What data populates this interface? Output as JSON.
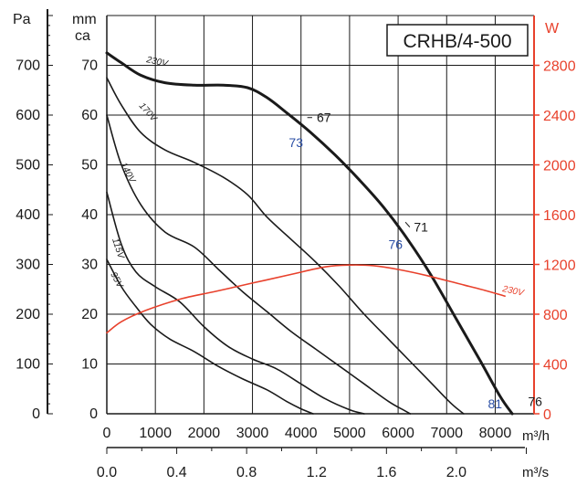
{
  "chart_data": {
    "type": "line",
    "title": "CRHB/4-500",
    "axes": {
      "x_flow_m3h": {
        "unit": "m³/h",
        "ticks": [
          0,
          1000,
          2000,
          3000,
          4000,
          5000,
          6000,
          7000,
          8000
        ],
        "range": [
          0,
          8800
        ]
      },
      "x_flow_m3s": {
        "unit": "m³/s",
        "ticks": [
          "0.0",
          "0.4",
          "0.8",
          "1.2",
          "1.6",
          "2.0"
        ],
        "values": [
          0,
          0.4,
          0.8,
          1.2,
          1.6,
          2.0
        ]
      },
      "y_pa": {
        "unit": "Pa",
        "ticks": [
          0,
          100,
          200,
          300,
          400,
          500,
          600,
          700
        ],
        "range": [
          0,
          800
        ]
      },
      "y_mmca": {
        "unit_line1": "mm",
        "unit_line2": "ca",
        "ticks": [
          0,
          10,
          20,
          30,
          40,
          50,
          60,
          70
        ],
        "range": [
          0,
          80
        ]
      },
      "y_w": {
        "unit": "W",
        "ticks": [
          0,
          400,
          800,
          1200,
          1600,
          2000,
          2400,
          2800
        ],
        "range": [
          0,
          3200
        ]
      }
    },
    "grid": true,
    "series": [
      {
        "name": "230V",
        "bold": true,
        "color": "#1a1a1a",
        "x": [
          0,
          300,
          700,
          1200,
          1800,
          2400,
          2900,
          3300,
          3700,
          4200,
          4700,
          5200,
          5700,
          6200,
          6700,
          7200,
          7700,
          8100,
          8350
        ],
        "y": [
          725,
          705,
          680,
          665,
          660,
          660,
          655,
          635,
          605,
          565,
          520,
          470,
          415,
          350,
          275,
          190,
          105,
          35,
          0
        ]
      },
      {
        "name": "170V",
        "bold": false,
        "color": "#1a1a1a",
        "x": [
          0,
          300,
          700,
          1200,
          1800,
          2400,
          2900,
          3300,
          3800,
          4300,
          4800,
          5300,
          5800,
          6300,
          6700,
          7100,
          7350
        ],
        "y": [
          675,
          620,
          565,
          530,
          505,
          475,
          440,
          395,
          350,
          305,
          255,
          200,
          150,
          100,
          60,
          20,
          0
        ]
      },
      {
        "name": "140V",
        "bold": false,
        "color": "#1a1a1a",
        "x": [
          0,
          300,
          700,
          1200,
          1800,
          2300,
          2800,
          3300,
          3800,
          4300,
          4800,
          5300,
          5800,
          6100,
          6250
        ],
        "y": [
          600,
          500,
          420,
          365,
          335,
          290,
          245,
          205,
          165,
          130,
          95,
          60,
          25,
          8,
          0
        ]
      },
      {
        "name": "115V",
        "bold": false,
        "color": "#1a1a1a",
        "x": [
          0,
          300,
          600,
          1000,
          1500,
          2000,
          2500,
          3000,
          3500,
          4000,
          4500,
          5000,
          5300
        ],
        "y": [
          445,
          340,
          285,
          255,
          225,
          175,
          135,
          110,
          90,
          60,
          30,
          8,
          0
        ]
      },
      {
        "name": "95V",
        "bold": false,
        "color": "#1a1a1a",
        "x": [
          0,
          300,
          600,
          900,
          1300,
          1800,
          2300,
          2800,
          3300,
          3700,
          4000,
          4250
        ],
        "y": [
          310,
          255,
          215,
          180,
          150,
          125,
          95,
          70,
          48,
          25,
          10,
          0
        ]
      },
      {
        "name": "230V",
        "axis": "W",
        "color": "#e8412c",
        "x": [
          0,
          300,
          800,
          1500,
          2200,
          3000,
          3800,
          4500,
          5000,
          5500,
          6000,
          6600,
          7200,
          7800,
          8200
        ],
        "y": [
          650,
          740,
          830,
          920,
          980,
          1050,
          1120,
          1180,
          1195,
          1190,
          1160,
          1110,
          1050,
          990,
          945
        ]
      }
    ],
    "annotations": {
      "black": [
        {
          "text": "67",
          "x": 4250,
          "y": 595
        },
        {
          "text": "71",
          "x": 6250,
          "y": 375
        },
        {
          "text": "76",
          "x": 8600,
          "y": 25
        }
      ],
      "blue": [
        {
          "text": "73",
          "x": 3750,
          "y": 545
        },
        {
          "text": "76",
          "x": 5800,
          "y": 340
        },
        {
          "text": "81",
          "x": 7850,
          "y": 20
        }
      ]
    },
    "colors": {
      "power": "#e8412c",
      "efficiency": "#2b4fa6",
      "curves": "#1a1a1a"
    }
  }
}
